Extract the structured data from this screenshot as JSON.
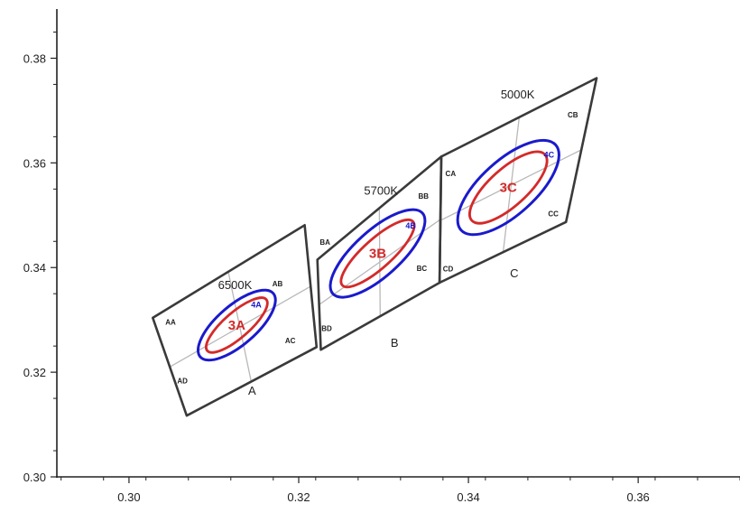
{
  "chart_data": {
    "type": "scatter",
    "title": "",
    "xlabel": "",
    "ylabel": "",
    "xlim": [
      0.2915,
      0.372
    ],
    "ylim": [
      0.3,
      0.3894
    ],
    "x_ticks": [
      0.3,
      0.32,
      0.34,
      0.36
    ],
    "x_tick_labels": [
      "0.30",
      "0.32",
      "0.34",
      "0.36"
    ],
    "y_ticks": [
      0.3,
      0.32,
      0.34,
      0.36,
      0.38
    ],
    "y_tick_labels": [
      "0.30",
      "0.32",
      "0.34",
      "0.36",
      "0.38"
    ],
    "grid": false,
    "colors": {
      "box": "#3a3a3a",
      "divider": "#b8b8b8",
      "ellipse_outer": "#1a1acc",
      "ellipse_inner": "#d42a2a",
      "label_red": "#d42a2a",
      "label_blue": "#1a1acc"
    },
    "bins": [
      {
        "id": "A",
        "label": "A",
        "cct": "6500K",
        "label_at": [
          0.3145,
          0.3166
        ],
        "cct_at": [
          0.3125,
          0.3368
        ],
        "corners": [
          [
            0.3028,
            0.3304
          ],
          [
            0.3207,
            0.3481
          ],
          [
            0.3221,
            0.3248
          ],
          [
            0.3068,
            0.3117
          ]
        ],
        "dividers": [
          [
            [
              0.3117,
              0.3392
            ],
            [
              0.3144,
              0.3182
            ]
          ],
          [
            [
              0.3048,
              0.321
            ],
            [
              0.3214,
              0.3364
            ]
          ]
        ],
        "ellipse_outer": {
          "center": [
            0.3127,
            0.329
          ],
          "rx": 0.0057,
          "ry": 0.0023,
          "rotation_deg": 41
        },
        "ellipse_inner": {
          "center": [
            0.3127,
            0.329
          ],
          "rx": 0.0046,
          "ry": 0.0015,
          "rotation_deg": 41
        },
        "ellipse_outer_label": "4A",
        "ellipse_outer_label_at": [
          0.315,
          0.3329
        ],
        "ellipse_inner_label": "3A",
        "ellipse_inner_label_at": [
          0.3127,
          0.329
        ],
        "sub_bins": [
          {
            "label": "AA",
            "at": [
              0.3049,
              0.3296
            ]
          },
          {
            "label": "AB",
            "at": [
              0.3175,
              0.3369
            ]
          },
          {
            "label": "AC",
            "at": [
              0.319,
              0.3261
            ]
          },
          {
            "label": "AD",
            "at": [
              0.3063,
              0.3184
            ]
          }
        ]
      },
      {
        "id": "B",
        "label": "B",
        "cct": "5700K",
        "label_at": [
          0.3313,
          0.3257
        ],
        "cct_at": [
          0.3297,
          0.3548
        ],
        "corners": [
          [
            0.3222,
            0.3415
          ],
          [
            0.3368,
            0.3612
          ],
          [
            0.3366,
            0.3371
          ],
          [
            0.3226,
            0.3243
          ]
        ],
        "dividers": [
          [
            [
              0.3295,
              0.3514
            ],
            [
              0.3296,
              0.3307
            ]
          ],
          [
            [
              0.3224,
              0.3329
            ],
            [
              0.3367,
              0.3492
            ]
          ]
        ],
        "ellipse_outer": {
          "center": [
            0.3293,
            0.3427
          ],
          "rx": 0.0071,
          "ry": 0.0027,
          "rotation_deg": 42
        },
        "ellipse_inner": {
          "center": [
            0.3293,
            0.3427
          ],
          "rx": 0.0056,
          "ry": 0.0017,
          "rotation_deg": 42
        },
        "ellipse_outer_label": "4B",
        "ellipse_outer_label_at": [
          0.3332,
          0.348
        ],
        "ellipse_inner_label": "3B",
        "ellipse_inner_label_at": [
          0.3293,
          0.3427
        ],
        "sub_bins": [
          {
            "label": "BA",
            "at": [
              0.3231,
              0.3449
            ]
          },
          {
            "label": "BB",
            "at": [
              0.3347,
              0.3537
            ]
          },
          {
            "label": "BC",
            "at": [
              0.3345,
              0.3399
            ]
          },
          {
            "label": "BD",
            "at": [
              0.3233,
              0.3284
            ]
          }
        ]
      },
      {
        "id": "C",
        "label": "C",
        "cct": "5000K",
        "label_at": [
          0.3454,
          0.339
        ],
        "cct_at": [
          0.3458,
          0.3732
        ],
        "corners": [
          [
            0.3368,
            0.3612
          ],
          [
            0.3551,
            0.3762
          ],
          [
            0.3515,
            0.3487
          ],
          [
            0.3366,
            0.3371
          ]
        ],
        "dividers": [
          [
            [
              0.346,
              0.3689
            ],
            [
              0.3441,
              0.3431
            ]
          ],
          [
            [
              0.3367,
              0.349
            ],
            [
              0.3533,
              0.3625
            ]
          ]
        ],
        "ellipse_outer": {
          "center": [
            0.3447,
            0.3553
          ],
          "rx": 0.0075,
          "ry": 0.0032,
          "rotation_deg": 42
        },
        "ellipse_inner": {
          "center": [
            0.3447,
            0.3553
          ],
          "rx": 0.0058,
          "ry": 0.0022,
          "rotation_deg": 42
        },
        "ellipse_outer_label": "4C",
        "ellipse_outer_label_at": [
          0.3495,
          0.3615
        ],
        "ellipse_inner_label": "3C",
        "ellipse_inner_label_at": [
          0.3447,
          0.3553
        ],
        "sub_bins": [
          {
            "label": "CA",
            "at": [
              0.3379,
              0.358
            ]
          },
          {
            "label": "CB",
            "at": [
              0.3523,
              0.3692
            ]
          },
          {
            "label": "CC",
            "at": [
              0.35,
              0.3503
            ]
          },
          {
            "label": "CD",
            "at": [
              0.3376,
              0.3398
            ]
          }
        ]
      }
    ]
  }
}
